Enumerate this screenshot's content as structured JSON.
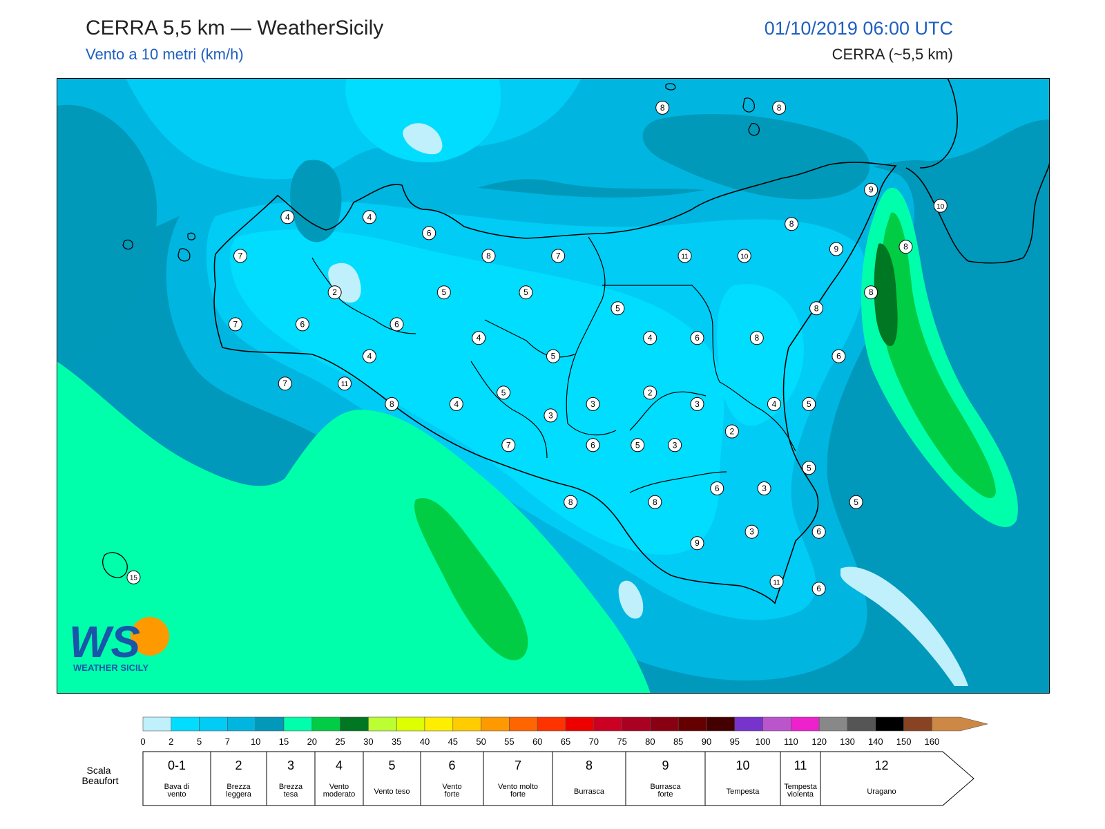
{
  "header": {
    "title": "CERRA 5,5 km — WeatherSicily",
    "subtitle": "Vento a 10 metri (km/h)",
    "datetime": "01/10/2019 06:00 UTC",
    "model": "CERRA (~5,5 km)"
  },
  "logo": {
    "text": "WEATHER SICILY",
    "monogram": "WS"
  },
  "colors": {
    "sea_base": "#0099bb",
    "band_0_2": "#bff0fb",
    "band_2_5": "#00ddff",
    "band_5_7": "#00ccf5",
    "band_7_10": "#00b6e0",
    "band_10_15": "#0099b9",
    "band_15_20": "#00ffaa",
    "band_20_25": "#00cc44",
    "band_25_30": "#007722",
    "outline": "#000000"
  },
  "wind_labels": [
    {
      "v": "8",
      "lon": 14.44,
      "lat": 38.77
    },
    {
      "v": "8",
      "lon": 14.91,
      "lat": 38.77
    },
    {
      "v": "9",
      "lon": 15.28,
      "lat": 38.41
    },
    {
      "v": "10",
      "lon": 15.56,
      "lat": 38.34
    },
    {
      "v": "4",
      "lon": 12.93,
      "lat": 38.29
    },
    {
      "v": "4",
      "lon": 13.26,
      "lat": 38.29
    },
    {
      "v": "6",
      "lon": 13.5,
      "lat": 38.22
    },
    {
      "v": "8",
      "lon": 14.96,
      "lat": 38.26
    },
    {
      "v": "9",
      "lon": 15.14,
      "lat": 38.15
    },
    {
      "v": "8",
      "lon": 15.42,
      "lat": 38.16
    },
    {
      "v": "7",
      "lon": 12.74,
      "lat": 38.12
    },
    {
      "v": "8",
      "lon": 13.74,
      "lat": 38.12
    },
    {
      "v": "7",
      "lon": 14.02,
      "lat": 38.12
    },
    {
      "v": "11",
      "lon": 14.53,
      "lat": 38.12
    },
    {
      "v": "10",
      "lon": 14.77,
      "lat": 38.12
    },
    {
      "v": "2",
      "lon": 13.12,
      "lat": 37.96
    },
    {
      "v": "5",
      "lon": 13.56,
      "lat": 37.96
    },
    {
      "v": "5",
      "lon": 13.89,
      "lat": 37.96
    },
    {
      "v": "8",
      "lon": 15.28,
      "lat": 37.96
    },
    {
      "v": "5",
      "lon": 14.26,
      "lat": 37.89
    },
    {
      "v": "8",
      "lon": 15.06,
      "lat": 37.89
    },
    {
      "v": "7",
      "lon": 12.72,
      "lat": 37.82
    },
    {
      "v": "6",
      "lon": 12.99,
      "lat": 37.82
    },
    {
      "v": "6",
      "lon": 13.37,
      "lat": 37.82
    },
    {
      "v": "4",
      "lon": 13.7,
      "lat": 37.76
    },
    {
      "v": "4",
      "lon": 14.39,
      "lat": 37.76
    },
    {
      "v": "6",
      "lon": 14.58,
      "lat": 37.76
    },
    {
      "v": "8",
      "lon": 14.82,
      "lat": 37.76
    },
    {
      "v": "4",
      "lon": 13.26,
      "lat": 37.68
    },
    {
      "v": "5",
      "lon": 14.0,
      "lat": 37.68
    },
    {
      "v": "6",
      "lon": 15.15,
      "lat": 37.68
    },
    {
      "v": "7",
      "lon": 12.92,
      "lat": 37.56
    },
    {
      "v": "11",
      "lon": 13.16,
      "lat": 37.56
    },
    {
      "v": "5",
      "lon": 13.8,
      "lat": 37.52
    },
    {
      "v": "2",
      "lon": 14.39,
      "lat": 37.52
    },
    {
      "v": "8",
      "lon": 13.35,
      "lat": 37.47
    },
    {
      "v": "4",
      "lon": 13.61,
      "lat": 37.47
    },
    {
      "v": "3",
      "lon": 14.16,
      "lat": 37.47
    },
    {
      "v": "3",
      "lon": 14.58,
      "lat": 37.47
    },
    {
      "v": "4",
      "lon": 14.89,
      "lat": 37.47
    },
    {
      "v": "5",
      "lon": 15.03,
      "lat": 37.47
    },
    {
      "v": "3",
      "lon": 13.99,
      "lat": 37.42
    },
    {
      "v": "2",
      "lon": 14.72,
      "lat": 37.35
    },
    {
      "v": "7",
      "lon": 13.82,
      "lat": 37.29
    },
    {
      "v": "6",
      "lon": 14.16,
      "lat": 37.29
    },
    {
      "v": "5",
      "lon": 14.34,
      "lat": 37.29
    },
    {
      "v": "3",
      "lon": 14.49,
      "lat": 37.29
    },
    {
      "v": "5",
      "lon": 15.03,
      "lat": 37.19
    },
    {
      "v": "6",
      "lon": 14.66,
      "lat": 37.1
    },
    {
      "v": "3",
      "lon": 14.85,
      "lat": 37.1
    },
    {
      "v": "8",
      "lon": 14.07,
      "lat": 37.04
    },
    {
      "v": "8",
      "lon": 14.41,
      "lat": 37.04
    },
    {
      "v": "5",
      "lon": 15.22,
      "lat": 37.04
    },
    {
      "v": "3",
      "lon": 14.8,
      "lat": 36.91
    },
    {
      "v": "6",
      "lon": 15.07,
      "lat": 36.91
    },
    {
      "v": "9",
      "lon": 14.58,
      "lat": 36.86
    },
    {
      "v": "15",
      "lon": 12.31,
      "lat": 36.71
    },
    {
      "v": "11",
      "lon": 14.9,
      "lat": 36.69
    },
    {
      "v": "6",
      "lon": 15.07,
      "lat": 36.66
    }
  ],
  "legend": {
    "ticks": [
      "0",
      "2",
      "5",
      "7",
      "10",
      "15",
      "20",
      "25",
      "30",
      "35",
      "40",
      "45",
      "50",
      "55",
      "60",
      "65",
      "70",
      "75",
      "80",
      "85",
      "90",
      "95",
      "100",
      "110",
      "120",
      "130",
      "140",
      "150",
      "160"
    ],
    "colors": [
      "#bff0fb",
      "#00ddff",
      "#00ccf5",
      "#00b6e0",
      "#0099b9",
      "#00ffaa",
      "#00cc44",
      "#007722",
      "#bbff33",
      "#ddff00",
      "#ffee00",
      "#ffcc00",
      "#ff9900",
      "#ff6600",
      "#ff3300",
      "#ee0000",
      "#cc0022",
      "#aa0022",
      "#880011",
      "#660000",
      "#440000",
      "#7733cc",
      "#bb55cc",
      "#ee22cc",
      "#888888",
      "#555555",
      "#000000",
      "#884422",
      "#cc8844"
    ],
    "beaufort_label": "Scala Beaufort",
    "beaufort": [
      {
        "num": "0-1",
        "desc": "Bava di vento"
      },
      {
        "num": "2",
        "desc": "Brezza leggera"
      },
      {
        "num": "3",
        "desc": "Brezza tesa"
      },
      {
        "num": "4",
        "desc": "Vento moderato"
      },
      {
        "num": "5",
        "desc": "Vento teso"
      },
      {
        "num": "6",
        "desc": "Vento forte"
      },
      {
        "num": "7",
        "desc": "Vento molto forte"
      },
      {
        "num": "8",
        "desc": "Burrasca"
      },
      {
        "num": "9",
        "desc": "Burrasca forte"
      },
      {
        "num": "10",
        "desc": "Tempesta"
      },
      {
        "num": "11",
        "desc": "Tempesta violenta"
      },
      {
        "num": "12",
        "desc": "Uragano"
      }
    ]
  }
}
